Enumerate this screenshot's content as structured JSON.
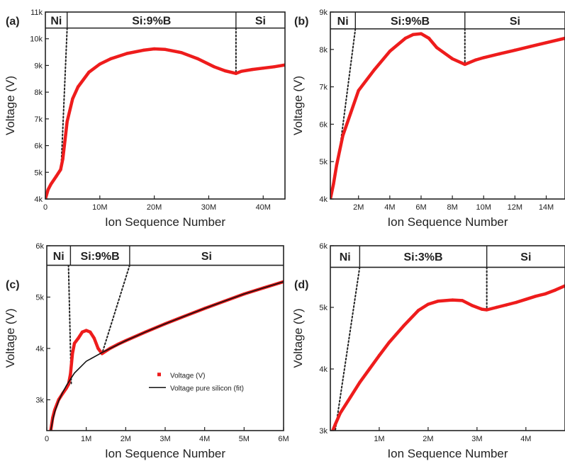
{
  "colors": {
    "data": "#ee1c1c",
    "fit": "#111111",
    "axis": "#222222"
  },
  "chart_data": [
    {
      "type": "line",
      "panel_label": "(a)",
      "xlabel": "Ion Sequence Number",
      "ylabel": "Voltage (V)",
      "xlim": [
        0,
        44000000
      ],
      "ylim": [
        4000,
        11000
      ],
      "x_ticks": [
        {
          "v": 0,
          "label": "0"
        },
        {
          "v": 10000000,
          "label": "10M"
        },
        {
          "v": 20000000,
          "label": "20M"
        },
        {
          "v": 30000000,
          "label": "30M"
        },
        {
          "v": 40000000,
          "label": "40M"
        }
      ],
      "y_ticks": [
        {
          "v": 4000,
          "label": "4k"
        },
        {
          "v": 5000,
          "label": "5k"
        },
        {
          "v": 6000,
          "label": "6k"
        },
        {
          "v": 7000,
          "label": "7k"
        },
        {
          "v": 8000,
          "label": "8k"
        },
        {
          "v": 9000,
          "label": "9k"
        },
        {
          "v": 10000,
          "label": "10k"
        },
        {
          "v": 11000,
          "label": "11k"
        }
      ],
      "header_top": 10400,
      "regions": [
        {
          "label": "Ni",
          "x_start": 0,
          "x_end": 4000000
        },
        {
          "label": "Si:9%B",
          "x_start": 4000000,
          "x_end": 35000000
        },
        {
          "label": "Si",
          "x_start": 35000000,
          "x_end": 44000000
        }
      ],
      "interfaces": [
        {
          "x1": 4000000,
          "y1": 10400,
          "x2": 2900000,
          "y2": 5200
        },
        {
          "x1": 35000000,
          "y1": 10400,
          "x2": 35000000,
          "y2": 8700
        }
      ],
      "series": [
        {
          "style": "data",
          "x": [
            0,
            500000,
            1000000,
            2000000,
            2800000,
            3200000,
            3600000,
            4000000,
            5000000,
            6000000,
            8000000,
            10000000,
            12000000,
            15000000,
            18000000,
            20000000,
            22000000,
            25000000,
            28000000,
            31000000,
            33000000,
            35000000,
            36000000,
            38000000,
            40000000,
            42000000,
            44000000
          ],
          "y": [
            4000,
            4350,
            4550,
            4850,
            5100,
            5500,
            6200,
            6900,
            7750,
            8200,
            8750,
            9050,
            9250,
            9450,
            9570,
            9620,
            9600,
            9480,
            9250,
            8950,
            8800,
            8700,
            8780,
            8850,
            8900,
            8950,
            9020
          ]
        }
      ]
    },
    {
      "type": "line",
      "panel_label": "(b)",
      "xlabel": "Ion Sequence Number",
      "ylabel": "Voltage (V)",
      "xlim": [
        200000,
        15200000
      ],
      "ylim": [
        4000,
        9000
      ],
      "x_ticks": [
        {
          "v": 2000000,
          "label": "2M"
        },
        {
          "v": 4000000,
          "label": "4M"
        },
        {
          "v": 6000000,
          "label": "6M"
        },
        {
          "v": 8000000,
          "label": "8M"
        },
        {
          "v": 10000000,
          "label": "10M"
        },
        {
          "v": 12000000,
          "label": "12M"
        },
        {
          "v": 14000000,
          "label": "14M"
        }
      ],
      "y_ticks": [
        {
          "v": 4000,
          "label": "4k"
        },
        {
          "v": 5000,
          "label": "5k"
        },
        {
          "v": 6000,
          "label": "6k"
        },
        {
          "v": 7000,
          "label": "7k"
        },
        {
          "v": 8000,
          "label": "8k"
        },
        {
          "v": 9000,
          "label": "9k"
        }
      ],
      "header_top": 8550,
      "regions": [
        {
          "label": "Ni",
          "x_start": 200000,
          "x_end": 1800000
        },
        {
          "label": "Si:9%B",
          "x_start": 1800000,
          "x_end": 8800000
        },
        {
          "label": "Si",
          "x_start": 8800000,
          "x_end": 15200000
        }
      ],
      "interfaces": [
        {
          "x1": 1800000,
          "y1": 8550,
          "x2": 700000,
          "y2": 5000
        },
        {
          "x1": 8800000,
          "y1": 8550,
          "x2": 8800000,
          "y2": 7600
        }
      ],
      "series": [
        {
          "style": "data",
          "x": [
            200000,
            400000,
            600000,
            800000,
            1000000,
            1500000,
            2000000,
            3000000,
            4000000,
            5000000,
            5500000,
            6000000,
            6500000,
            7000000,
            8000000,
            8800000,
            9500000,
            10000000,
            11000000,
            12000000,
            13000000,
            14000000,
            15200000
          ],
          "y": [
            4000,
            4400,
            4900,
            5300,
            5700,
            6300,
            6900,
            7450,
            7950,
            8300,
            8400,
            8420,
            8300,
            8050,
            7750,
            7600,
            7720,
            7780,
            7880,
            7980,
            8080,
            8180,
            8300
          ]
        }
      ]
    },
    {
      "type": "line",
      "panel_label": "(c)",
      "xlabel": "Ion Sequence Number",
      "ylabel": "Voltage (V)",
      "xlim": [
        0,
        6000000
      ],
      "ylim": [
        2400,
        6000
      ],
      "x_ticks": [
        {
          "v": 0,
          "label": "0"
        },
        {
          "v": 1000000,
          "label": "1M"
        },
        {
          "v": 2000000,
          "label": "2M"
        },
        {
          "v": 3000000,
          "label": "3M"
        },
        {
          "v": 4000000,
          "label": "4M"
        },
        {
          "v": 5000000,
          "label": "5M"
        },
        {
          "v": 6000000,
          "label": "6M"
        }
      ],
      "y_ticks": [
        {
          "v": 3000,
          "label": "3k"
        },
        {
          "v": 4000,
          "label": "4k"
        },
        {
          "v": 5000,
          "label": "5k"
        },
        {
          "v": 6000,
          "label": "6k"
        }
      ],
      "header_top": 5620,
      "regions": [
        {
          "label": "Ni",
          "x_start": 0,
          "x_end": 600000
        },
        {
          "label": "Si:9%B",
          "x_start": 600000,
          "x_end": 2100000
        },
        {
          "label": "Si",
          "x_start": 2100000,
          "x_end": 6000000
        }
      ],
      "interfaces": [
        {
          "x1": 550000,
          "y1": 5620,
          "x2": 620000,
          "y2": 3300
        },
        {
          "x1": 2100000,
          "y1": 5620,
          "x2": 1400000,
          "y2": 3900
        }
      ],
      "legend": {
        "position": "center-right",
        "entries": [
          {
            "label": "Voltage (V)",
            "style": "data"
          },
          {
            "label": "Voltage pure silicon (fit)",
            "style": "fit"
          }
        ]
      },
      "series": [
        {
          "name": "Voltage (V)",
          "style": "data",
          "x": [
            100000,
            150000,
            200000,
            300000,
            400000,
            500000,
            550000,
            600000,
            650000,
            700000,
            800000,
            900000,
            1000000,
            1100000,
            1200000,
            1300000,
            1400000,
            1600000,
            1800000,
            2000000,
            2500000,
            3000000,
            3500000,
            4000000,
            4500000,
            5000000,
            5500000,
            6000000
          ],
          "y": [
            2400,
            2650,
            2800,
            3000,
            3120,
            3230,
            3300,
            3500,
            3900,
            4100,
            4200,
            4320,
            4350,
            4320,
            4200,
            4000,
            3900,
            4000,
            4080,
            4150,
            4320,
            4480,
            4630,
            4780,
            4920,
            5060,
            5180,
            5300
          ]
        },
        {
          "name": "Voltage pure silicon (fit)",
          "style": "fit",
          "x": [
            100000,
            150000,
            200000,
            300000,
            400000,
            500000,
            700000,
            1000000,
            1400000,
            2000000,
            2500000,
            3000000,
            3500000,
            4000000,
            4500000,
            5000000,
            5500000,
            6000000
          ],
          "y": [
            2400,
            2600,
            2760,
            2980,
            3140,
            3280,
            3520,
            3750,
            3920,
            4150,
            4320,
            4480,
            4630,
            4780,
            4920,
            5060,
            5180,
            5300
          ]
        }
      ]
    },
    {
      "type": "line",
      "panel_label": "(d)",
      "xlabel": "Ion Sequence Number",
      "ylabel": "Voltage (V)",
      "xlim": [
        0,
        4800000
      ],
      "ylim": [
        3000,
        6000
      ],
      "x_ticks": [
        {
          "v": 1000000,
          "label": "1M"
        },
        {
          "v": 2000000,
          "label": "2M"
        },
        {
          "v": 3000000,
          "label": "3M"
        },
        {
          "v": 4000000,
          "label": "4M"
        }
      ],
      "y_ticks": [
        {
          "v": 3000,
          "label": "3k"
        },
        {
          "v": 4000,
          "label": "4k"
        },
        {
          "v": 5000,
          "label": "5k"
        },
        {
          "v": 6000,
          "label": "6k"
        }
      ],
      "header_top": 5650,
      "regions": [
        {
          "label": "Ni",
          "x_start": 0,
          "x_end": 600000
        },
        {
          "label": "Si:3%B",
          "x_start": 600000,
          "x_end": 3200000
        },
        {
          "label": "Si",
          "x_start": 3200000,
          "x_end": 4800000
        }
      ],
      "interfaces": [
        {
          "x1": 600000,
          "y1": 5650,
          "x2": 100000,
          "y2": 3000
        },
        {
          "x1": 3200000,
          "y1": 5650,
          "x2": 3200000,
          "y2": 4950
        }
      ],
      "series": [
        {
          "style": "data",
          "x": [
            50000,
            100000,
            200000,
            400000,
            600000,
            800000,
            1000000,
            1200000,
            1500000,
            1800000,
            2000000,
            2200000,
            2500000,
            2700000,
            2900000,
            3100000,
            3200000,
            3400000,
            3600000,
            3800000,
            4000000,
            4200000,
            4400000,
            4600000,
            4800000
          ],
          "y": [
            3000,
            3100,
            3280,
            3530,
            3780,
            4000,
            4220,
            4430,
            4700,
            4950,
            5050,
            5100,
            5120,
            5110,
            5030,
            4970,
            4960,
            5000,
            5040,
            5080,
            5130,
            5180,
            5220,
            5280,
            5350
          ]
        }
      ]
    }
  ]
}
